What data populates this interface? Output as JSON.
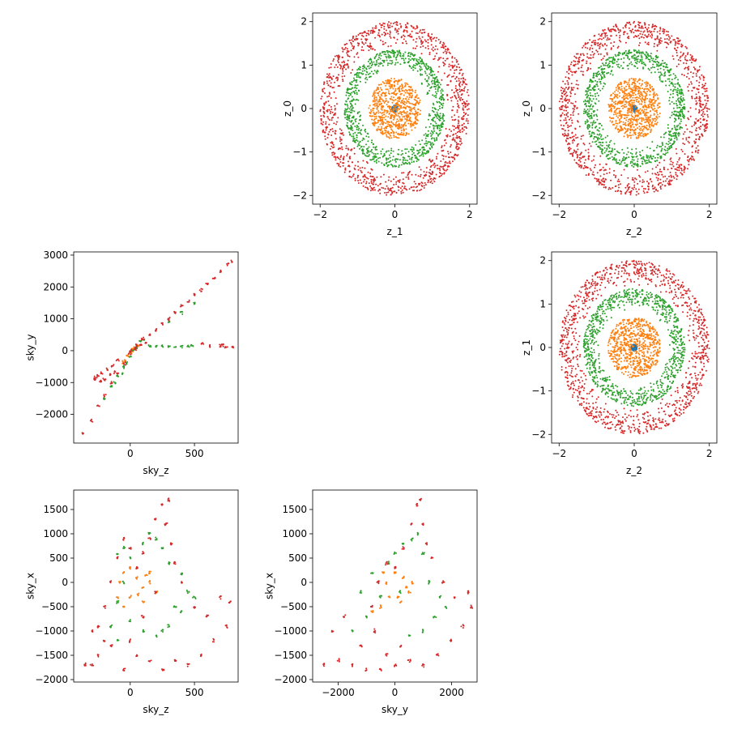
{
  "chart_data": [
    {
      "type": "scatter",
      "xlabel": "z_1",
      "ylabel": "z_0",
      "xlim": [
        -2.2,
        2.2
      ],
      "ylim": [
        -2.2,
        2.2
      ],
      "xticks": [
        -2,
        0,
        2
      ],
      "yticks": [
        -2,
        -1,
        0,
        1,
        2
      ],
      "shape": "rings",
      "series": [
        {
          "color": "#1f77b4",
          "center": [
            0,
            0
          ],
          "inner_radius": 0,
          "outer_radius": 0.08,
          "points": 60
        },
        {
          "color": "#ff7f0e",
          "center": [
            0,
            0
          ],
          "inner_radius": 0,
          "outer_radius": 0.7,
          "points": 700
        },
        {
          "color": "#2ca02c",
          "center": [
            0,
            0
          ],
          "inner_radius": 0.9,
          "outer_radius": 1.35,
          "points": 900
        },
        {
          "color": "#d62728",
          "center": [
            0,
            0
          ],
          "inner_radius": 1.4,
          "outer_radius": 2.0,
          "points": 1100
        }
      ]
    },
    {
      "type": "scatter",
      "xlabel": "z_2",
      "ylabel": "z_0",
      "xlim": [
        -2.2,
        2.2
      ],
      "ylim": [
        -2.2,
        2.2
      ],
      "xticks": [
        -2,
        0,
        2
      ],
      "yticks": [
        -2,
        -1,
        0,
        1,
        2
      ],
      "shape": "rings",
      "series": [
        {
          "color": "#1f77b4",
          "center": [
            0,
            0
          ],
          "inner_radius": 0,
          "outer_radius": 0.08,
          "points": 60
        },
        {
          "color": "#ff7f0e",
          "center": [
            0,
            0
          ],
          "inner_radius": 0,
          "outer_radius": 0.7,
          "points": 700
        },
        {
          "color": "#2ca02c",
          "center": [
            0,
            0
          ],
          "inner_radius": 0.9,
          "outer_radius": 1.35,
          "points": 900
        },
        {
          "color": "#d62728",
          "center": [
            0,
            0
          ],
          "inner_radius": 1.4,
          "outer_radius": 2.0,
          "points": 1100
        }
      ]
    },
    {
      "type": "scatter",
      "xlabel": "sky_z",
      "ylabel": "sky_y",
      "xlim": [
        -440,
        840
      ],
      "ylim": [
        -2900,
        3100
      ],
      "xticks": [
        0,
        500
      ],
      "yticks": [
        -2000,
        -1000,
        0,
        1000,
        2000,
        3000
      ],
      "shape": "custom",
      "series": [
        {
          "color": "#ff7f0e",
          "points": [
            [
              -40,
              -300
            ],
            [
              0,
              -50
            ],
            [
              30,
              80
            ],
            [
              60,
              150
            ],
            [
              -20,
              -150
            ],
            [
              10,
              0
            ],
            [
              40,
              100
            ],
            [
              -60,
              -350
            ],
            [
              20,
              40
            ],
            [
              50,
              120
            ]
          ]
        },
        {
          "color": "#2ca02c",
          "points": [
            [
              -200,
              -1500
            ],
            [
              -150,
              -1100
            ],
            [
              -100,
              -800
            ],
            [
              -50,
              -500
            ],
            [
              0,
              -200
            ],
            [
              50,
              100
            ],
            [
              100,
              350
            ],
            [
              150,
              150
            ],
            [
              200,
              120
            ],
            [
              250,
              150
            ],
            [
              300,
              140
            ],
            [
              350,
              130
            ],
            [
              400,
              150
            ],
            [
              450,
              120
            ],
            [
              480,
              160
            ],
            [
              300,
              900
            ],
            [
              400,
              1200
            ],
            [
              500,
              1500
            ],
            [
              -60,
              -700
            ],
            [
              -120,
              -1000
            ],
            [
              80,
              300
            ],
            [
              20,
              0
            ],
            [
              -30,
              -400
            ]
          ]
        },
        {
          "color": "#d62728",
          "points": [
            [
              -370,
              -2600
            ],
            [
              -300,
              -2200
            ],
            [
              -250,
              -1700
            ],
            [
              -200,
              -1400
            ],
            [
              -150,
              -1000
            ],
            [
              -100,
              -700
            ],
            [
              -50,
              -400
            ],
            [
              0,
              -100
            ],
            [
              50,
              150
            ],
            [
              100,
              350
            ],
            [
              150,
              500
            ],
            [
              200,
              650
            ],
            [
              250,
              850
            ],
            [
              300,
              1000
            ],
            [
              350,
              1200
            ],
            [
              400,
              1400
            ],
            [
              450,
              1550
            ],
            [
              500,
              1750
            ],
            [
              550,
              1900
            ],
            [
              600,
              2100
            ],
            [
              650,
              2300
            ],
            [
              700,
              2500
            ],
            [
              760,
              2700
            ],
            [
              790,
              2800
            ],
            [
              -280,
              -900
            ],
            [
              -250,
              -800
            ],
            [
              -220,
              -700
            ],
            [
              -200,
              -900
            ],
            [
              -180,
              -600
            ],
            [
              -160,
              -750
            ],
            [
              -230,
              -950
            ],
            [
              -270,
              -850
            ],
            [
              -140,
              -500
            ],
            [
              -120,
              -650
            ],
            [
              -100,
              -300
            ],
            [
              0,
              0
            ],
            [
              40,
              50
            ],
            [
              80,
              200
            ],
            [
              120,
              250
            ],
            [
              700,
              150
            ],
            [
              750,
              120
            ],
            [
              800,
              100
            ],
            [
              720,
              180
            ],
            [
              560,
              200
            ],
            [
              620,
              160
            ]
          ]
        }
      ]
    },
    {
      "type": "scatter",
      "xlabel": "z_2",
      "ylabel": "z_1",
      "xlim": [
        -2.2,
        2.2
      ],
      "ylim": [
        -2.2,
        2.2
      ],
      "xticks": [
        -2,
        0,
        2
      ],
      "yticks": [
        -2,
        -1,
        0,
        1,
        2
      ],
      "shape": "rings",
      "series": [
        {
          "color": "#1f77b4",
          "center": [
            0,
            0
          ],
          "inner_radius": 0,
          "outer_radius": 0.08,
          "points": 60
        },
        {
          "color": "#ff7f0e",
          "center": [
            0,
            0
          ],
          "inner_radius": 0,
          "outer_radius": 0.7,
          "points": 700
        },
        {
          "color": "#2ca02c",
          "center": [
            0,
            0
          ],
          "inner_radius": 0.9,
          "outer_radius": 1.35,
          "points": 900
        },
        {
          "color": "#d62728",
          "center": [
            0,
            0
          ],
          "inner_radius": 1.4,
          "outer_radius": 2.0,
          "points": 1100
        }
      ]
    },
    {
      "type": "scatter",
      "xlabel": "sky_z",
      "ylabel": "sky_x",
      "xlim": [
        -440,
        840
      ],
      "ylim": [
        -2050,
        1900
      ],
      "xticks": [
        0,
        500
      ],
      "yticks": [
        -2000,
        -1500,
        -1000,
        -500,
        0,
        500,
        1000,
        1500
      ],
      "shape": "custom",
      "series": [
        {
          "color": "#ff7f0e",
          "points": [
            [
              -50,
              200
            ],
            [
              0,
              300
            ],
            [
              50,
              100
            ],
            [
              100,
              -100
            ],
            [
              150,
              0
            ],
            [
              200,
              -200
            ],
            [
              -100,
              -300
            ],
            [
              -50,
              -500
            ],
            [
              0,
              -300
            ],
            [
              100,
              -400
            ],
            [
              150,
              200
            ],
            [
              -80,
              0
            ],
            [
              60,
              -250
            ],
            [
              120,
              150
            ]
          ]
        },
        {
          "color": "#2ca02c",
          "points": [
            [
              -100,
              600
            ],
            [
              -50,
              700
            ],
            [
              0,
              500
            ],
            [
              100,
              800
            ],
            [
              150,
              1000
            ],
            [
              200,
              900
            ],
            [
              250,
              700
            ],
            [
              300,
              400
            ],
            [
              400,
              200
            ],
            [
              450,
              -200
            ],
            [
              500,
              -300
            ],
            [
              400,
              -600
            ],
            [
              300,
              -900
            ],
            [
              200,
              -1100
            ],
            [
              100,
              -1000
            ],
            [
              0,
              -800
            ],
            [
              -100,
              -1200
            ],
            [
              -150,
              -900
            ],
            [
              -100,
              -400
            ],
            [
              -50,
              0
            ],
            [
              350,
              -500
            ],
            [
              250,
              -1000
            ]
          ]
        },
        {
          "color": "#d62728",
          "points": [
            [
              -300,
              -1700
            ],
            [
              -250,
              -1500
            ],
            [
              -200,
              -1200
            ],
            [
              -250,
              -900
            ],
            [
              -200,
              -500
            ],
            [
              -150,
              0
            ],
            [
              -100,
              500
            ],
            [
              -50,
              900
            ],
            [
              0,
              700
            ],
            [
              50,
              300
            ],
            [
              100,
              600
            ],
            [
              150,
              900
            ],
            [
              200,
              1300
            ],
            [
              250,
              1600
            ],
            [
              300,
              1700
            ],
            [
              280,
              1200
            ],
            [
              320,
              800
            ],
            [
              350,
              400
            ],
            [
              400,
              0
            ],
            [
              500,
              -500
            ],
            [
              600,
              -700
            ],
            [
              700,
              -300
            ],
            [
              780,
              -400
            ],
            [
              750,
              -900
            ],
            [
              650,
              -1200
            ],
            [
              550,
              -1500
            ],
            [
              450,
              -1700
            ],
            [
              350,
              -1600
            ],
            [
              250,
              -1800
            ],
            [
              150,
              -1600
            ],
            [
              50,
              -1500
            ],
            [
              -50,
              -1800
            ],
            [
              -150,
              -1300
            ],
            [
              -350,
              -1700
            ],
            [
              -300,
              -1000
            ],
            [
              100,
              -700
            ],
            [
              200,
              -200
            ],
            [
              0,
              -1200
            ]
          ]
        }
      ]
    },
    {
      "type": "scatter",
      "xlabel": "sky_y",
      "ylabel": "sky_x",
      "xlim": [
        -2900,
        2900
      ],
      "ylim": [
        -2050,
        1900
      ],
      "xticks": [
        -2000,
        0,
        2000
      ],
      "yticks": [
        -2000,
        -1500,
        -1000,
        -500,
        0,
        500,
        1000,
        1500
      ],
      "shape": "custom",
      "series": [
        {
          "color": "#ff7f0e",
          "points": [
            [
              -300,
              0
            ],
            [
              0,
              200
            ],
            [
              300,
              100
            ],
            [
              500,
              -200
            ],
            [
              200,
              -400
            ],
            [
              -200,
              -300
            ],
            [
              -500,
              -500
            ],
            [
              -800,
              -600
            ],
            [
              -400,
              200
            ],
            [
              400,
              -100
            ],
            [
              600,
              0
            ],
            [
              100,
              -300
            ]
          ]
        },
        {
          "color": "#2ca02c",
          "points": [
            [
              -1500,
              -1000
            ],
            [
              -1000,
              -700
            ],
            [
              -500,
              -300
            ],
            [
              -200,
              400
            ],
            [
              0,
              600
            ],
            [
              300,
              800
            ],
            [
              600,
              900
            ],
            [
              800,
              1000
            ],
            [
              1000,
              600
            ],
            [
              1200,
              0
            ],
            [
              1600,
              -300
            ],
            [
              1400,
              -700
            ],
            [
              1000,
              -1000
            ],
            [
              500,
              -1100
            ],
            [
              -800,
              200
            ],
            [
              -1200,
              -200
            ],
            [
              1800,
              -500
            ],
            [
              200,
              -200
            ]
          ]
        },
        {
          "color": "#d62728",
          "points": [
            [
              -2500,
              -1700
            ],
            [
              -2000,
              -1600
            ],
            [
              -1500,
              -1700
            ],
            [
              -1000,
              -1800
            ],
            [
              -700,
              -1000
            ],
            [
              -800,
              -500
            ],
            [
              -600,
              0
            ],
            [
              -300,
              400
            ],
            [
              0,
              300
            ],
            [
              300,
              700
            ],
            [
              600,
              1200
            ],
            [
              800,
              1600
            ],
            [
              900,
              1700
            ],
            [
              1000,
              1200
            ],
            [
              1100,
              800
            ],
            [
              1300,
              500
            ],
            [
              1700,
              0
            ],
            [
              2100,
              -300
            ],
            [
              2600,
              -200
            ],
            [
              2700,
              -500
            ],
            [
              2400,
              -900
            ],
            [
              2000,
              -1200
            ],
            [
              1500,
              -1500
            ],
            [
              1000,
              -1700
            ],
            [
              500,
              -1600
            ],
            [
              0,
              -1700
            ],
            [
              -500,
              -1800
            ],
            [
              -1200,
              -1300
            ],
            [
              -1800,
              -700
            ],
            [
              -2200,
              -1000
            ],
            [
              200,
              -1300
            ],
            [
              -300,
              -1500
            ]
          ]
        }
      ]
    }
  ]
}
